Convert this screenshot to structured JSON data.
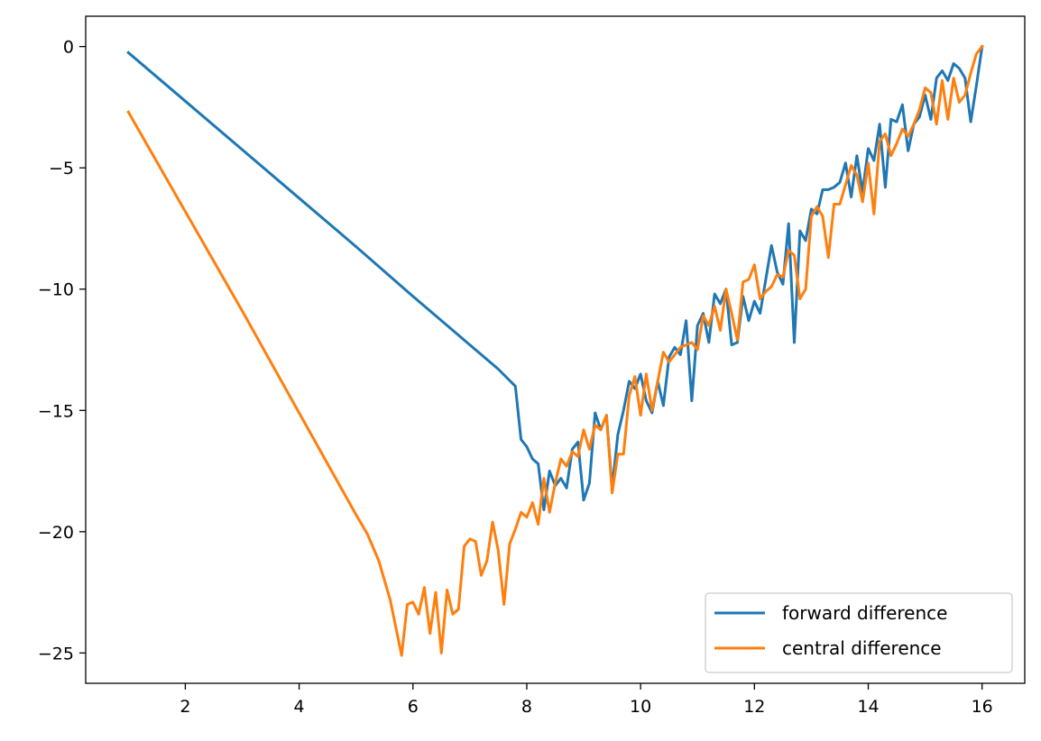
{
  "chart_data": {
    "type": "line",
    "title": "",
    "xlabel": "",
    "ylabel": "",
    "xlim": [
      0.25,
      16.75
    ],
    "ylim": [
      -26.25,
      1.25
    ],
    "xticks": [
      2,
      4,
      6,
      8,
      10,
      12,
      14,
      16
    ],
    "yticks": [
      0,
      -5,
      -10,
      -15,
      -20,
      -25
    ],
    "grid": false,
    "legend_position": "bottom-right",
    "series": [
      {
        "name": "forward difference",
        "color": "#1f77b4",
        "points": [
          [
            1.0,
            -0.25
          ],
          [
            2.0,
            -2.25
          ],
          [
            3.0,
            -4.25
          ],
          [
            4.0,
            -6.25
          ],
          [
            5.0,
            -8.25
          ],
          [
            6.0,
            -10.3
          ],
          [
            7.0,
            -12.3
          ],
          [
            7.5,
            -13.3
          ],
          [
            7.8,
            -14.0
          ],
          [
            7.9,
            -16.2
          ],
          [
            8.0,
            -16.5
          ],
          [
            8.1,
            -17.0
          ],
          [
            8.2,
            -17.2
          ],
          [
            8.3,
            -19.1
          ],
          [
            8.4,
            -17.5
          ],
          [
            8.5,
            -18.1
          ],
          [
            8.6,
            -17.8
          ],
          [
            8.7,
            -18.2
          ],
          [
            8.8,
            -16.6
          ],
          [
            8.9,
            -16.3
          ],
          [
            9.0,
            -18.7
          ],
          [
            9.1,
            -18.0
          ],
          [
            9.2,
            -15.1
          ],
          [
            9.3,
            -15.8
          ],
          [
            9.4,
            -15.2
          ],
          [
            9.5,
            -18.2
          ],
          [
            9.6,
            -16.0
          ],
          [
            9.7,
            -15.0
          ],
          [
            9.8,
            -13.8
          ],
          [
            9.9,
            -14.1
          ],
          [
            10.0,
            -13.5
          ],
          [
            10.1,
            -14.6
          ],
          [
            10.2,
            -15.1
          ],
          [
            10.3,
            -13.8
          ],
          [
            10.4,
            -14.8
          ],
          [
            10.5,
            -12.8
          ],
          [
            10.6,
            -12.4
          ],
          [
            10.7,
            -12.7
          ],
          [
            10.8,
            -11.3
          ],
          [
            10.9,
            -14.6
          ],
          [
            11.0,
            -11.5
          ],
          [
            11.1,
            -11.0
          ],
          [
            11.2,
            -12.2
          ],
          [
            11.3,
            -10.2
          ],
          [
            11.4,
            -10.6
          ],
          [
            11.5,
            -10.0
          ],
          [
            11.6,
            -12.3
          ],
          [
            11.7,
            -12.2
          ],
          [
            11.8,
            -10.3
          ],
          [
            11.9,
            -11.3
          ],
          [
            12.0,
            -10.5
          ],
          [
            12.1,
            -11.0
          ],
          [
            12.2,
            -9.6
          ],
          [
            12.3,
            -8.2
          ],
          [
            12.4,
            -9.3
          ],
          [
            12.5,
            -9.8
          ],
          [
            12.6,
            -7.3
          ],
          [
            12.7,
            -12.2
          ],
          [
            12.8,
            -7.6
          ],
          [
            12.9,
            -8.0
          ],
          [
            13.0,
            -6.7
          ],
          [
            13.1,
            -6.9
          ],
          [
            13.2,
            -5.9
          ],
          [
            13.3,
            -5.9
          ],
          [
            13.4,
            -5.8
          ],
          [
            13.5,
            -5.6
          ],
          [
            13.6,
            -4.8
          ],
          [
            13.7,
            -6.2
          ],
          [
            13.8,
            -4.5
          ],
          [
            13.9,
            -6.0
          ],
          [
            14.0,
            -4.2
          ],
          [
            14.1,
            -4.7
          ],
          [
            14.2,
            -3.2
          ],
          [
            14.3,
            -5.8
          ],
          [
            14.4,
            -3.0
          ],
          [
            14.5,
            -3.1
          ],
          [
            14.6,
            -2.4
          ],
          [
            14.7,
            -4.3
          ],
          [
            14.8,
            -3.2
          ],
          [
            14.9,
            -2.9
          ],
          [
            15.0,
            -2.0
          ],
          [
            15.1,
            -3.0
          ],
          [
            15.2,
            -1.3
          ],
          [
            15.3,
            -1.0
          ],
          [
            15.4,
            -1.4
          ],
          [
            15.5,
            -0.7
          ],
          [
            15.6,
            -0.9
          ],
          [
            15.7,
            -1.3
          ],
          [
            15.8,
            -3.1
          ],
          [
            15.9,
            -1.6
          ],
          [
            16.0,
            0.0
          ]
        ]
      },
      {
        "name": "central difference",
        "color": "#ff7f0e",
        "points": [
          [
            1.0,
            -2.7
          ],
          [
            2.0,
            -6.8
          ],
          [
            3.0,
            -10.9
          ],
          [
            4.0,
            -15.1
          ],
          [
            5.0,
            -19.3
          ],
          [
            5.2,
            -20.1
          ],
          [
            5.4,
            -21.2
          ],
          [
            5.6,
            -22.8
          ],
          [
            5.8,
            -25.1
          ],
          [
            5.9,
            -23.0
          ],
          [
            6.0,
            -22.9
          ],
          [
            6.1,
            -23.4
          ],
          [
            6.2,
            -22.3
          ],
          [
            6.3,
            -24.2
          ],
          [
            6.4,
            -22.5
          ],
          [
            6.5,
            -25.0
          ],
          [
            6.6,
            -22.4
          ],
          [
            6.7,
            -23.4
          ],
          [
            6.8,
            -23.2
          ],
          [
            6.9,
            -20.6
          ],
          [
            7.0,
            -20.3
          ],
          [
            7.1,
            -20.4
          ],
          [
            7.2,
            -21.8
          ],
          [
            7.3,
            -21.2
          ],
          [
            7.4,
            -19.6
          ],
          [
            7.5,
            -20.8
          ],
          [
            7.6,
            -23.0
          ],
          [
            7.7,
            -20.5
          ],
          [
            7.8,
            -19.9
          ],
          [
            7.9,
            -19.2
          ],
          [
            8.0,
            -19.4
          ],
          [
            8.1,
            -18.8
          ],
          [
            8.2,
            -19.7
          ],
          [
            8.3,
            -17.8
          ],
          [
            8.4,
            -19.2
          ],
          [
            8.5,
            -18.0
          ],
          [
            8.6,
            -17.0
          ],
          [
            8.7,
            -17.3
          ],
          [
            8.8,
            -16.7
          ],
          [
            8.9,
            -16.9
          ],
          [
            9.0,
            -15.8
          ],
          [
            9.1,
            -16.6
          ],
          [
            9.2,
            -15.6
          ],
          [
            9.3,
            -15.8
          ],
          [
            9.4,
            -15.2
          ],
          [
            9.5,
            -18.4
          ],
          [
            9.6,
            -16.8
          ],
          [
            9.7,
            -16.8
          ],
          [
            9.8,
            -14.4
          ],
          [
            9.9,
            -13.6
          ],
          [
            10.0,
            -15.2
          ],
          [
            10.1,
            -13.5
          ],
          [
            10.2,
            -15.0
          ],
          [
            10.3,
            -13.8
          ],
          [
            10.4,
            -12.6
          ],
          [
            10.5,
            -13.0
          ],
          [
            10.6,
            -12.7
          ],
          [
            10.7,
            -12.4
          ],
          [
            10.8,
            -12.3
          ],
          [
            10.9,
            -12.2
          ],
          [
            11.0,
            -12.5
          ],
          [
            11.1,
            -11.1
          ],
          [
            11.2,
            -11.5
          ],
          [
            11.3,
            -10.7
          ],
          [
            11.4,
            -11.7
          ],
          [
            11.5,
            -10.0
          ],
          [
            11.6,
            -11.0
          ],
          [
            11.7,
            -12.1
          ],
          [
            11.8,
            -9.7
          ],
          [
            11.9,
            -9.6
          ],
          [
            12.0,
            -9.0
          ],
          [
            12.1,
            -10.4
          ],
          [
            12.2,
            -10.1
          ],
          [
            12.3,
            -9.9
          ],
          [
            12.4,
            -9.4
          ],
          [
            12.5,
            -9.5
          ],
          [
            12.6,
            -8.4
          ],
          [
            12.7,
            -8.6
          ],
          [
            12.8,
            -10.4
          ],
          [
            12.9,
            -10.0
          ],
          [
            13.0,
            -7.0
          ],
          [
            13.1,
            -6.6
          ],
          [
            13.2,
            -7.0
          ],
          [
            13.3,
            -8.7
          ],
          [
            13.4,
            -6.5
          ],
          [
            13.5,
            -6.5
          ],
          [
            13.6,
            -5.7
          ],
          [
            13.7,
            -4.9
          ],
          [
            13.8,
            -5.3
          ],
          [
            13.9,
            -6.4
          ],
          [
            14.0,
            -4.8
          ],
          [
            14.1,
            -6.9
          ],
          [
            14.2,
            -3.9
          ],
          [
            14.3,
            -3.6
          ],
          [
            14.4,
            -4.5
          ],
          [
            14.5,
            -4.0
          ],
          [
            14.6,
            -3.4
          ],
          [
            14.7,
            -3.7
          ],
          [
            14.8,
            -3.2
          ],
          [
            14.9,
            -2.6
          ],
          [
            15.0,
            -1.7
          ],
          [
            15.1,
            -1.9
          ],
          [
            15.2,
            -3.2
          ],
          [
            15.3,
            -1.4
          ],
          [
            15.4,
            -3.0
          ],
          [
            15.5,
            -1.3
          ],
          [
            15.6,
            -2.3
          ],
          [
            15.7,
            -2.0
          ],
          [
            15.8,
            -1.1
          ],
          [
            15.9,
            -0.3
          ],
          [
            16.0,
            0.0
          ]
        ]
      }
    ]
  }
}
